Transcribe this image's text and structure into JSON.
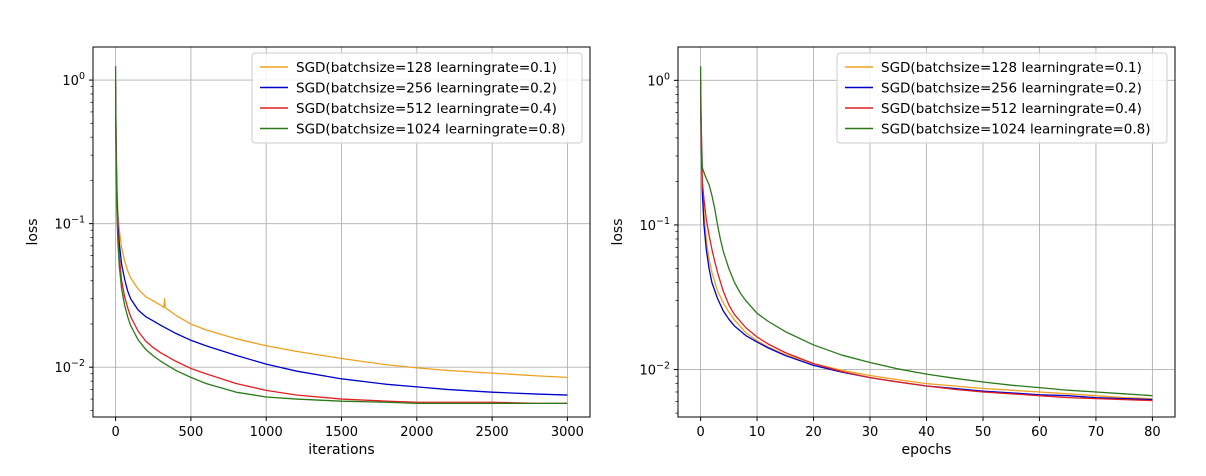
{
  "chart_data": [
    {
      "type": "line",
      "title": "",
      "xlabel": "iterations",
      "ylabel": "loss",
      "xlim": [
        -150,
        3150
      ],
      "ylim": [
        0.0045,
        1.7
      ],
      "yscale": "log",
      "grid": true,
      "legend_position": "top-right",
      "x_ticks": [
        0,
        500,
        1000,
        1500,
        2000,
        2500,
        3000
      ],
      "x_tick_labels": [
        "0",
        "500",
        "1000",
        "1500",
        "2000",
        "2500",
        "3000"
      ],
      "y_ticks": [
        1,
        0.1,
        0.01
      ],
      "y_tick_labels": [
        "10^0",
        "10^-1",
        "10^-2"
      ],
      "series": [
        {
          "name": "SGD(batchsize=128 learningrate=0.1)",
          "color": "#f0a020",
          "x": [
            0,
            3,
            8,
            15,
            25,
            40,
            60,
            80,
            100,
            150,
            200,
            250,
            300,
            320,
            325,
            330,
            400,
            500,
            600,
            800,
            1000,
            1200,
            1500,
            1800,
            2000,
            2200,
            2500,
            2800,
            3000
          ],
          "y": [
            0.9,
            0.45,
            0.2,
            0.12,
            0.09,
            0.068,
            0.055,
            0.047,
            0.042,
            0.035,
            0.031,
            0.029,
            0.027,
            0.026,
            0.03,
            0.026,
            0.023,
            0.02,
            0.0182,
            0.0158,
            0.0141,
            0.0129,
            0.0115,
            0.0104,
            0.0099,
            0.0095,
            0.0091,
            0.0087,
            0.0085
          ]
        },
        {
          "name": "SGD(batchsize=256 learningrate=0.2)",
          "color": "#0000cc",
          "x": [
            0,
            3,
            8,
            15,
            25,
            40,
            60,
            80,
            100,
            150,
            200,
            250,
            300,
            400,
            500,
            600,
            800,
            1000,
            1200,
            1500,
            1800,
            2000,
            2200,
            2500,
            2800,
            3000
          ],
          "y": [
            0.9,
            0.4,
            0.17,
            0.1,
            0.072,
            0.052,
            0.041,
            0.034,
            0.03,
            0.025,
            0.0225,
            0.021,
            0.0196,
            0.0172,
            0.0154,
            0.0141,
            0.0121,
            0.0105,
            0.0094,
            0.0083,
            0.0076,
            0.0073,
            0.007,
            0.0067,
            0.0065,
            0.0064
          ]
        },
        {
          "name": "SGD(batchsize=512 learningrate=0.4)",
          "color": "#e02020",
          "x": [
            0,
            3,
            8,
            15,
            25,
            40,
            60,
            80,
            100,
            150,
            200,
            250,
            300,
            400,
            500,
            600,
            800,
            1000,
            1200,
            1500,
            1800,
            2000,
            2200,
            2500,
            2800,
            3000
          ],
          "y": [
            1.0,
            0.35,
            0.15,
            0.085,
            0.058,
            0.04,
            0.031,
            0.026,
            0.0225,
            0.0178,
            0.0152,
            0.0137,
            0.0126,
            0.011,
            0.0098,
            0.009,
            0.0077,
            0.0069,
            0.0064,
            0.006,
            0.0058,
            0.0057,
            0.0057,
            0.0057,
            0.0056,
            0.0056
          ]
        },
        {
          "name": "SGD(batchsize=1024 learningrate=0.8)",
          "color": "#2a7a1a",
          "x": [
            0,
            3,
            8,
            15,
            25,
            40,
            60,
            80,
            100,
            150,
            200,
            250,
            300,
            400,
            500,
            600,
            800,
            1000,
            1200,
            1500,
            1800,
            2000,
            2200,
            2500,
            2800,
            3000
          ],
          "y": [
            1.25,
            0.32,
            0.13,
            0.075,
            0.05,
            0.035,
            0.027,
            0.0225,
            0.0195,
            0.0155,
            0.0133,
            0.012,
            0.011,
            0.0095,
            0.0085,
            0.0077,
            0.0067,
            0.0062,
            0.006,
            0.0058,
            0.0057,
            0.0056,
            0.0056,
            0.0056,
            0.0056,
            0.0056
          ]
        }
      ]
    },
    {
      "type": "line",
      "title": "",
      "xlabel": "epochs",
      "ylabel": "loss",
      "xlim": [
        -4,
        84
      ],
      "ylim": [
        0.0047,
        1.7
      ],
      "yscale": "log",
      "grid": true,
      "legend_position": "top-right",
      "x_ticks": [
        0,
        10,
        20,
        30,
        40,
        50,
        60,
        70,
        80
      ],
      "x_tick_labels": [
        "0",
        "10",
        "20",
        "30",
        "40",
        "50",
        "60",
        "70",
        "80"
      ],
      "y_ticks": [
        1,
        0.1,
        0.01
      ],
      "y_tick_labels": [
        "10^0",
        "10^-1",
        "10^-2"
      ],
      "series": [
        {
          "name": "SGD(batchsize=128 learningrate=0.1)",
          "color": "#f0a020",
          "x": [
            0,
            0.1,
            0.3,
            0.6,
            1,
            1.5,
            2,
            3,
            4,
            5,
            6,
            8,
            10,
            12,
            15,
            20,
            25,
            30,
            35,
            40,
            45,
            50,
            55,
            60,
            65,
            70,
            75,
            80
          ],
          "y": [
            0.9,
            0.45,
            0.2,
            0.12,
            0.08,
            0.058,
            0.047,
            0.035,
            0.029,
            0.025,
            0.022,
            0.018,
            0.0158,
            0.0143,
            0.0127,
            0.011,
            0.0099,
            0.0091,
            0.0085,
            0.008,
            0.0077,
            0.0074,
            0.0072,
            0.007,
            0.0068,
            0.0066,
            0.0064,
            0.0063
          ]
        },
        {
          "name": "SGD(batchsize=256 learningrate=0.2)",
          "color": "#0000cc",
          "x": [
            0,
            0.1,
            0.3,
            0.6,
            1,
            1.5,
            2,
            3,
            4,
            5,
            6,
            8,
            10,
            12,
            15,
            20,
            25,
            30,
            35,
            40,
            45,
            50,
            55,
            60,
            65,
            70,
            75,
            80
          ],
          "y": [
            0.9,
            0.4,
            0.17,
            0.1,
            0.068,
            0.05,
            0.04,
            0.031,
            0.0255,
            0.0223,
            0.02,
            0.0172,
            0.0155,
            0.0141,
            0.0125,
            0.0107,
            0.0096,
            0.0088,
            0.0082,
            0.0077,
            0.0074,
            0.0071,
            0.0069,
            0.0067,
            0.0066,
            0.0064,
            0.0063,
            0.0062
          ]
        },
        {
          "name": "SGD(batchsize=512 learningrate=0.4)",
          "color": "#e02020",
          "x": [
            0,
            0.1,
            0.3,
            0.6,
            1,
            1.5,
            2,
            2.5,
            3,
            4,
            5,
            6,
            8,
            10,
            12,
            15,
            20,
            25,
            30,
            35,
            40,
            45,
            50,
            55,
            60,
            65,
            70,
            75,
            80
          ],
          "y": [
            1.0,
            0.4,
            0.2,
            0.15,
            0.11,
            0.085,
            0.068,
            0.056,
            0.047,
            0.035,
            0.028,
            0.024,
            0.0195,
            0.0168,
            0.015,
            0.0131,
            0.011,
            0.0097,
            0.0088,
            0.0082,
            0.0077,
            0.0073,
            0.007,
            0.0068,
            0.0066,
            0.0064,
            0.0063,
            0.0062,
            0.0061
          ]
        },
        {
          "name": "SGD(batchsize=1024 learningrate=0.8)",
          "color": "#2a7a1a",
          "x": [
            0,
            0.1,
            0.3,
            0.6,
            1,
            1.5,
            2,
            2.5,
            3,
            3.5,
            4,
            5,
            6,
            7,
            8,
            10,
            12,
            15,
            20,
            25,
            30,
            35,
            40,
            45,
            50,
            55,
            60,
            65,
            70,
            75,
            80
          ],
          "y": [
            1.25,
            0.5,
            0.25,
            0.23,
            0.21,
            0.19,
            0.16,
            0.13,
            0.1,
            0.08,
            0.066,
            0.05,
            0.04,
            0.034,
            0.03,
            0.0245,
            0.0215,
            0.0183,
            0.0148,
            0.0126,
            0.0112,
            0.0101,
            0.0093,
            0.0087,
            0.0082,
            0.0078,
            0.0075,
            0.0072,
            0.007,
            0.0068,
            0.0066
          ]
        }
      ]
    }
  ]
}
